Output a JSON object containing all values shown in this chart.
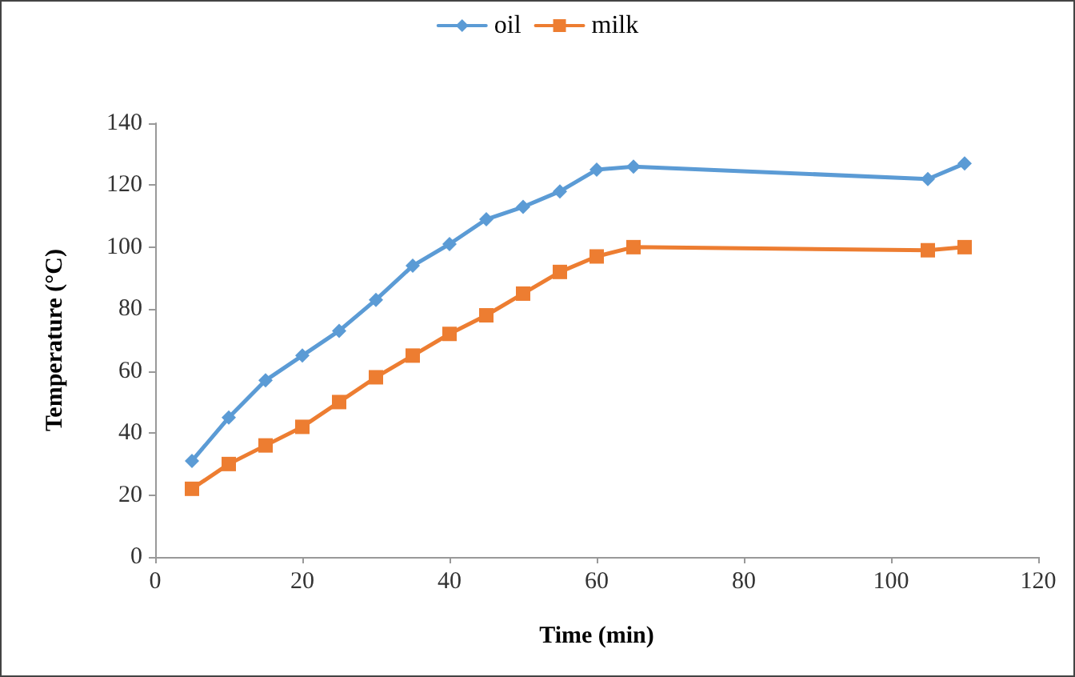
{
  "chart_data": {
    "type": "line",
    "xlabel": "Time (min)",
    "ylabel": "Temperature (°C)",
    "xlim": [
      0,
      120
    ],
    "xticks": [
      0,
      20,
      40,
      60,
      80,
      100,
      120
    ],
    "ylim": [
      0,
      140
    ],
    "yticks": [
      0,
      20,
      40,
      60,
      80,
      100,
      120,
      140
    ],
    "grid": false,
    "legend": "top",
    "line_style": "solid",
    "series": [
      {
        "name": "oil",
        "color": "#5b9bd5",
        "marker": "diamond",
        "x": [
          5,
          10,
          15,
          20,
          25,
          30,
          35,
          40,
          45,
          50,
          55,
          60,
          65,
          105,
          110
        ],
        "values": [
          31,
          45,
          57,
          65,
          73,
          83,
          94,
          101,
          109,
          113,
          118,
          125,
          126,
          122,
          127
        ]
      },
      {
        "name": "milk",
        "color": "#ed7d31",
        "marker": "square",
        "x": [
          5,
          10,
          15,
          20,
          25,
          30,
          35,
          40,
          45,
          50,
          55,
          60,
          65,
          105,
          110
        ],
        "values": [
          22,
          30,
          36,
          42,
          50,
          58,
          65,
          72,
          78,
          85,
          92,
          97,
          100,
          99,
          100
        ]
      }
    ]
  }
}
